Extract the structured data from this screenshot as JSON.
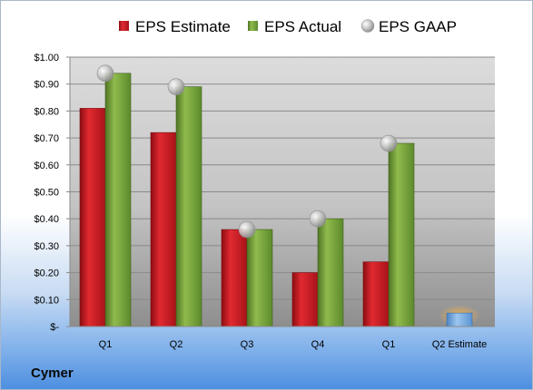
{
  "chart_data": {
    "type": "bar",
    "title": "",
    "xlabel": "",
    "ylabel": "",
    "categories": [
      "Q1",
      "Q2",
      "Q3",
      "Q4",
      "Q1",
      "Q2 Estimate"
    ],
    "series": [
      {
        "name": "EPS Estimate",
        "type": "bar",
        "color": "#c8161d",
        "values": [
          0.81,
          0.72,
          0.36,
          0.2,
          0.24,
          null
        ]
      },
      {
        "name": "EPS Actual",
        "type": "bar",
        "color": "#77a03a",
        "values": [
          0.94,
          0.89,
          0.36,
          0.4,
          0.68,
          null
        ]
      },
      {
        "name": "EPS GAAP",
        "type": "marker",
        "color": "#b9b9b9",
        "values": [
          0.94,
          0.89,
          0.36,
          0.4,
          0.68,
          null
        ]
      },
      {
        "name": "",
        "type": "bar",
        "color": "#6fa6dc",
        "highlight": "#f0a030",
        "values": [
          null,
          null,
          null,
          null,
          null,
          0.05
        ]
      }
    ],
    "ylim": [
      0,
      1.0
    ],
    "yticks": [
      "$-",
      "$0.10",
      "$0.20",
      "$0.30",
      "$0.40",
      "$0.50",
      "$0.60",
      "$0.70",
      "$0.80",
      "$0.90",
      "$1.00"
    ],
    "grid": true,
    "legend": "top"
  },
  "company": "Cymer"
}
